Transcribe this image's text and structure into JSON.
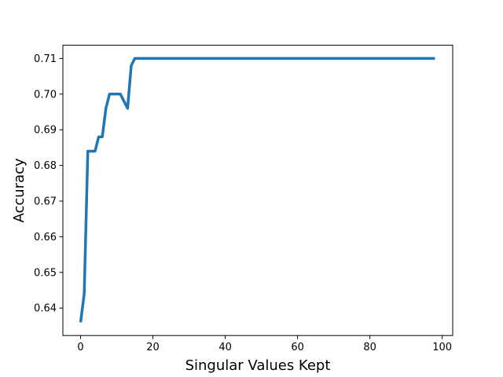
{
  "chart_data": {
    "type": "line",
    "title": "",
    "xlabel": "Singular Values Kept",
    "ylabel": "Accuracy",
    "xlim": [
      -4.9,
      102.9
    ],
    "ylim": [
      0.6323,
      0.7137
    ],
    "x_ticks": [
      0,
      20,
      40,
      60,
      80,
      100
    ],
    "x_tick_labels": [
      "0",
      "20",
      "40",
      "60",
      "80",
      "100"
    ],
    "y_ticks": [
      0.64,
      0.65,
      0.66,
      0.67,
      0.68,
      0.69,
      0.7,
      0.71
    ],
    "y_tick_labels": [
      "0.64",
      "0.65",
      "0.66",
      "0.67",
      "0.68",
      "0.69",
      "0.70",
      "0.71"
    ],
    "grid": false,
    "line_color": "#1f77b4",
    "series": [
      {
        "x": [
          0,
          1,
          2,
          3,
          4,
          5,
          6,
          7,
          8,
          9,
          10,
          11,
          12,
          13,
          14,
          15,
          20,
          30,
          40,
          50,
          60,
          70,
          80,
          90,
          98
        ],
        "values": [
          0.636,
          0.644,
          0.684,
          0.684,
          0.684,
          0.688,
          0.688,
          0.696,
          0.7,
          0.7,
          0.7,
          0.7,
          0.698,
          0.696,
          0.708,
          0.71,
          0.71,
          0.71,
          0.71,
          0.71,
          0.71,
          0.71,
          0.71,
          0.71,
          0.71
        ]
      }
    ]
  }
}
